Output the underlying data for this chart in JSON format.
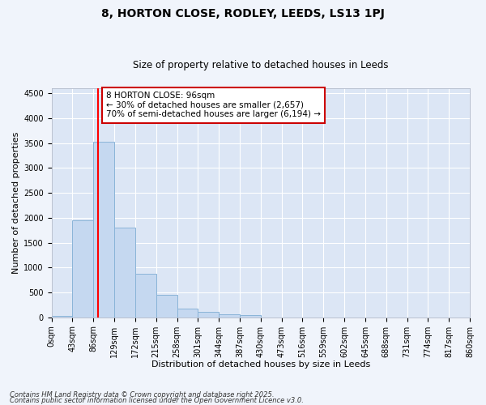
{
  "title": "8, HORTON CLOSE, RODLEY, LEEDS, LS13 1PJ",
  "subtitle": "Size of property relative to detached houses in Leeds",
  "xlabel": "Distribution of detached houses by size in Leeds",
  "ylabel": "Number of detached properties",
  "bin_labels": [
    "0sqm",
    "43sqm",
    "86sqm",
    "129sqm",
    "172sqm",
    "215sqm",
    "258sqm",
    "301sqm",
    "344sqm",
    "387sqm",
    "430sqm",
    "473sqm",
    "516sqm",
    "559sqm",
    "602sqm",
    "645sqm",
    "688sqm",
    "731sqm",
    "774sqm",
    "817sqm",
    "860sqm"
  ],
  "bin_edges": [
    0,
    43,
    86,
    129,
    172,
    215,
    258,
    301,
    344,
    387,
    430,
    473,
    516,
    559,
    602,
    645,
    688,
    731,
    774,
    817,
    860
  ],
  "bar_heights": [
    30,
    1950,
    3530,
    1800,
    870,
    450,
    175,
    105,
    55,
    45,
    0,
    0,
    0,
    0,
    0,
    0,
    0,
    0,
    0,
    0
  ],
  "bar_color": "#c5d8f0",
  "bar_edge_color": "#8ab4d8",
  "red_line_x": 96,
  "ylim": [
    0,
    4600
  ],
  "yticks": [
    0,
    500,
    1000,
    1500,
    2000,
    2500,
    3000,
    3500,
    4000,
    4500
  ],
  "annotation_line1": "8 HORTON CLOSE: 96sqm",
  "annotation_line2": "← 30% of detached houses are smaller (2,657)",
  "annotation_line3": "70% of semi-detached houses are larger (6,194) →",
  "annotation_box_facecolor": "#ffffff",
  "annotation_box_edgecolor": "#cc0000",
  "footnote1": "Contains HM Land Registry data © Crown copyright and database right 2025.",
  "footnote2": "Contains public sector information licensed under the Open Government Licence v3.0.",
  "fig_bg_color": "#f0f4fb",
  "plot_bg_color": "#dce6f5",
  "grid_color": "#ffffff",
  "title_fontsize": 10,
  "subtitle_fontsize": 8.5,
  "axis_label_fontsize": 8,
  "tick_fontsize": 7,
  "annot_fontsize": 7.5
}
